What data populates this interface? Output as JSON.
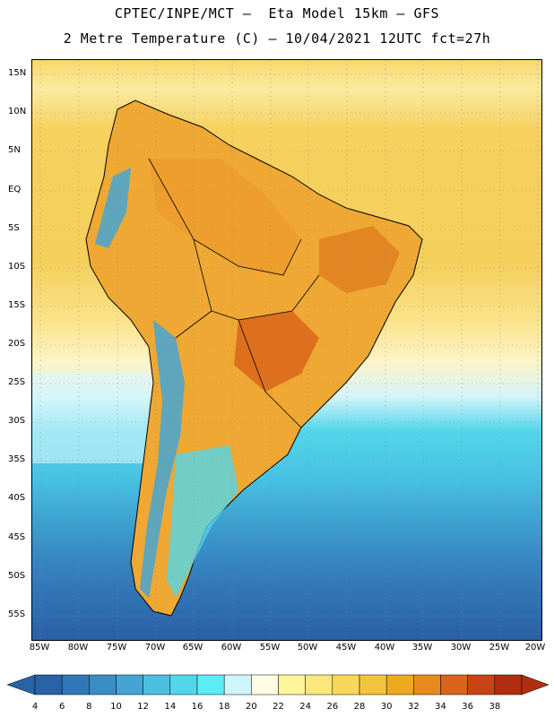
{
  "header": {
    "title_line1": "CPTEC/INPE/MCT –  Eta Model 15km – GFS",
    "title_line2": "2 Metre Temperature (C) – 10/04/2021 12UTC fct=27h"
  },
  "map": {
    "region": "South America",
    "variable": "2 Metre Temperature",
    "units": "C",
    "lat_labels": [
      "15N",
      "10N",
      "5N",
      "EQ",
      "5S",
      "10S",
      "15S",
      "20S",
      "25S",
      "30S",
      "35S",
      "40S",
      "45S",
      "50S",
      "55S"
    ],
    "lon_labels": [
      "85W",
      "80W",
      "75W",
      "70W",
      "65W",
      "60W",
      "55W",
      "50W",
      "45W",
      "40W",
      "35W",
      "30W",
      "25W",
      "20W"
    ]
  },
  "colorbar": {
    "labels": [
      "4",
      "6",
      "8",
      "10",
      "12",
      "14",
      "16",
      "18",
      "20",
      "22",
      "24",
      "26",
      "28",
      "30",
      "32",
      "34",
      "36",
      "38"
    ],
    "colors": [
      "#2a62a8",
      "#2f77b8",
      "#3a8cc4",
      "#45a4d4",
      "#4cbfe0",
      "#52d6ea",
      "#5cecf5",
      "#cdf5fb",
      "#fffbe4",
      "#fef59c",
      "#fbe77a",
      "#f8d75a",
      "#f2c43c",
      "#eda91f",
      "#e78b1e",
      "#d9651a",
      "#c74414",
      "#b02e0f"
    ]
  }
}
